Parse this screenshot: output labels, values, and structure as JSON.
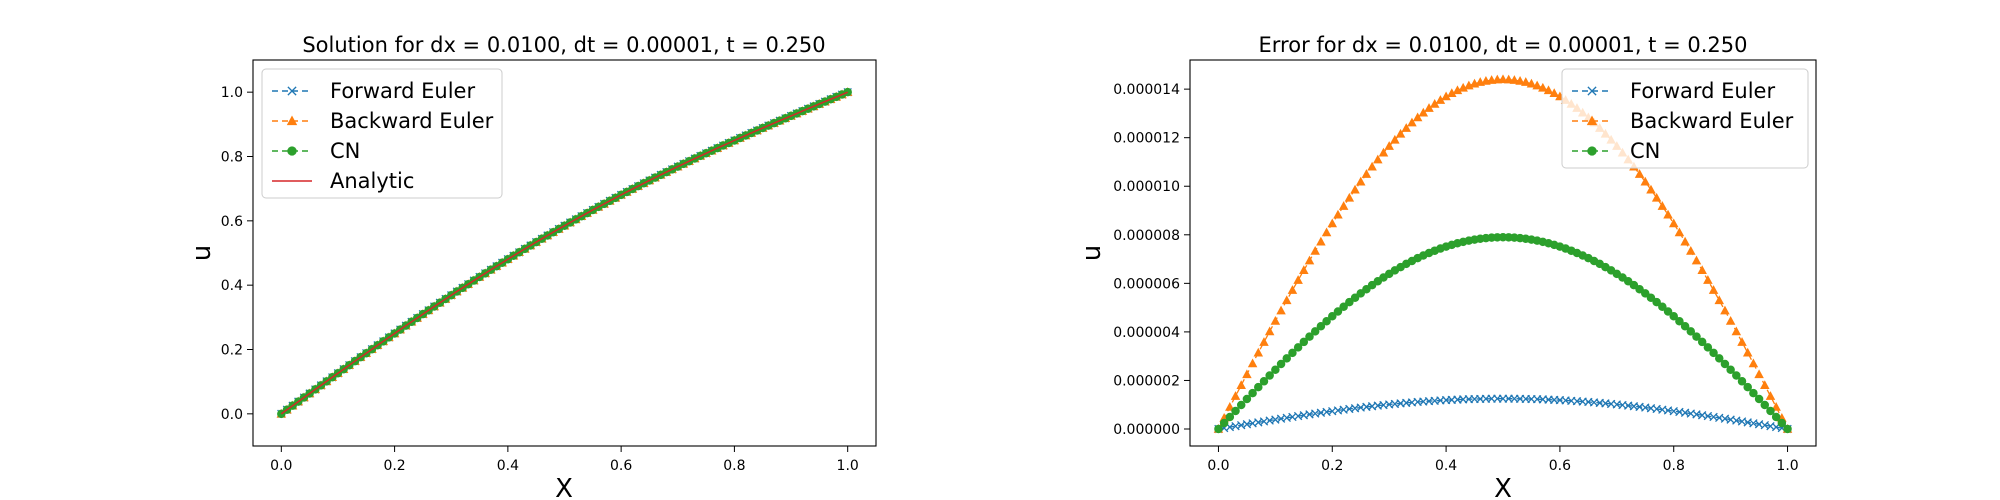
{
  "chart_data": [
    {
      "type": "line",
      "title": "Solution for dx = 0.0100, dt = 0.00001, t = 0.250",
      "xlabel": "X",
      "ylabel": "u",
      "xlim": [
        -0.05,
        1.05
      ],
      "ylim": [
        -0.1,
        1.1
      ],
      "xticks": [
        "0.0",
        "0.2",
        "0.4",
        "0.6",
        "0.8",
        "1.0"
      ],
      "yticks": [
        "0.0",
        "0.2",
        "0.4",
        "0.6",
        "0.8",
        "1.0"
      ],
      "grid": false,
      "legend_position": "top-left",
      "x_start": 0.0,
      "x_end": 1.0,
      "x_step": 0.01,
      "function": "u(x) = x + sin(pi x) * exp(-pi^2 t), t = 0.25 (approx. 0.085*sin(pi x))",
      "series": [
        {
          "name": "Forward Euler",
          "color": "#1f77b4",
          "marker": "x",
          "dashed": true
        },
        {
          "name": "Backward Euler",
          "color": "#ff7f0e",
          "marker": "triangle",
          "dashed": true
        },
        {
          "name": "CN",
          "color": "#2ca02c",
          "marker": "circle",
          "dashed": true
        },
        {
          "name": "Analytic",
          "color": "#d62728",
          "marker": "none",
          "dashed": false
        }
      ],
      "sample_values": {
        "x": [
          0.0,
          0.25,
          0.5,
          0.75,
          1.0
        ],
        "y": [
          0.0,
          0.31,
          0.585,
          0.81,
          1.0
        ]
      }
    },
    {
      "type": "line",
      "title": "Error for dx = 0.0100, dt = 0.00001, t = 0.250",
      "xlabel": "X",
      "ylabel": "u",
      "xlim": [
        -0.05,
        1.05
      ],
      "ylim": [
        -7e-07,
        1.52e-05
      ],
      "xticks": [
        "0.0",
        "0.2",
        "0.4",
        "0.6",
        "0.8",
        "1.0"
      ],
      "yticks": [
        "0.000000",
        "0.000002",
        "0.000004",
        "0.000006",
        "0.000008",
        "0.000010",
        "0.000012",
        "0.000014"
      ],
      "grid": false,
      "legend_position": "top-right",
      "x_start": 0.0,
      "x_end": 1.0,
      "x_step": 0.01,
      "series": [
        {
          "name": "Forward Euler",
          "color": "#1f77b4",
          "marker": "x",
          "dashed": true,
          "peak": 1.25e-06,
          "function": "0.00000125 * sin(pi x)"
        },
        {
          "name": "Backward Euler",
          "color": "#ff7f0e",
          "marker": "triangle",
          "dashed": true,
          "peak": 1.44e-05,
          "function": "0.0000144 * sin(pi x)"
        },
        {
          "name": "CN",
          "color": "#2ca02c",
          "marker": "circle",
          "dashed": true,
          "peak": 7.9e-06,
          "function": "0.0000079 * sin(pi x)"
        }
      ]
    }
  ]
}
